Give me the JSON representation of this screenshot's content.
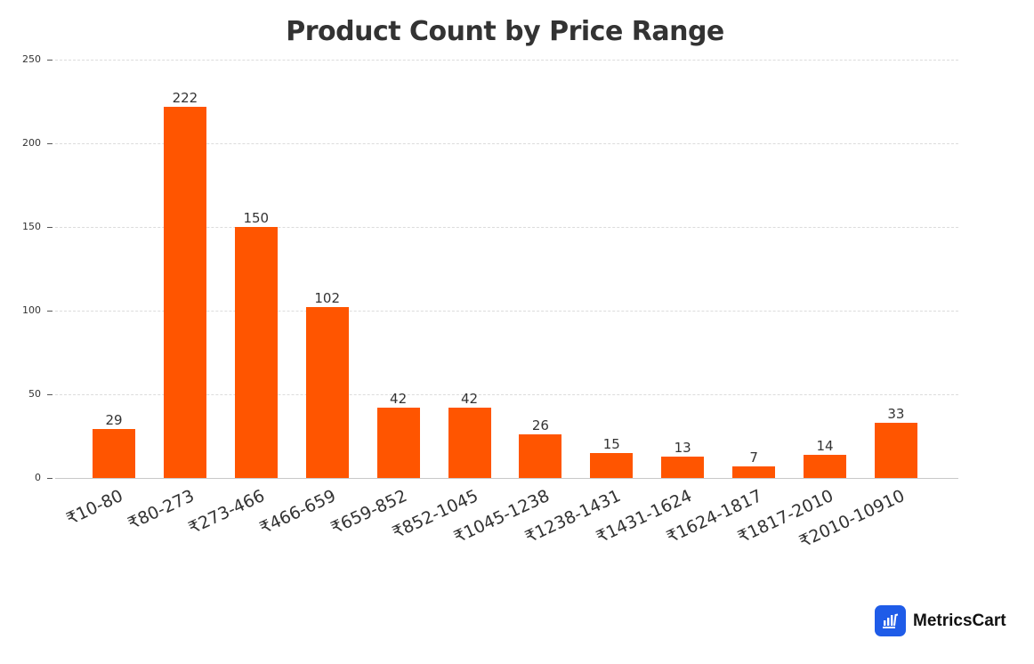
{
  "chart_data": {
    "type": "bar",
    "title": "Product Count by Price Range",
    "xlabel": "",
    "ylabel": "",
    "ylim": [
      0,
      250
    ],
    "yticks": [
      0,
      50,
      100,
      150,
      200,
      250
    ],
    "grid": true,
    "legend": null,
    "bar_color": "#FF5500",
    "categories": [
      "₹10-80",
      "₹80-273",
      "₹273-466",
      "₹466-659",
      "₹659-852",
      "₹852-1045",
      "₹1045-1238",
      "₹1238-1431",
      "₹1431-1624",
      "₹1624-1817",
      "₹1817-2010",
      "₹2010-10910"
    ],
    "values": [
      29,
      222,
      150,
      102,
      42,
      42,
      26,
      15,
      13,
      7,
      14,
      33
    ]
  },
  "labels": {
    "title": "Product Count by Price Range",
    "yticks": [
      "0",
      "50",
      "100",
      "150",
      "200",
      "250"
    ],
    "categories": [
      "₹10-80",
      "₹80-273",
      "₹273-466",
      "₹466-659",
      "₹659-852",
      "₹852-1045",
      "₹1045-1238",
      "₹1238-1431",
      "₹1431-1624",
      "₹1624-1817",
      "₹1817-2010",
      "₹2010-10910"
    ],
    "values": [
      "29",
      "222",
      "150",
      "102",
      "42",
      "42",
      "26",
      "15",
      "13",
      "7",
      "14",
      "33"
    ]
  },
  "branding": {
    "name": "MetricsCart",
    "icon": "bar-chart-cart-icon",
    "color": "#1F5CE8"
  }
}
